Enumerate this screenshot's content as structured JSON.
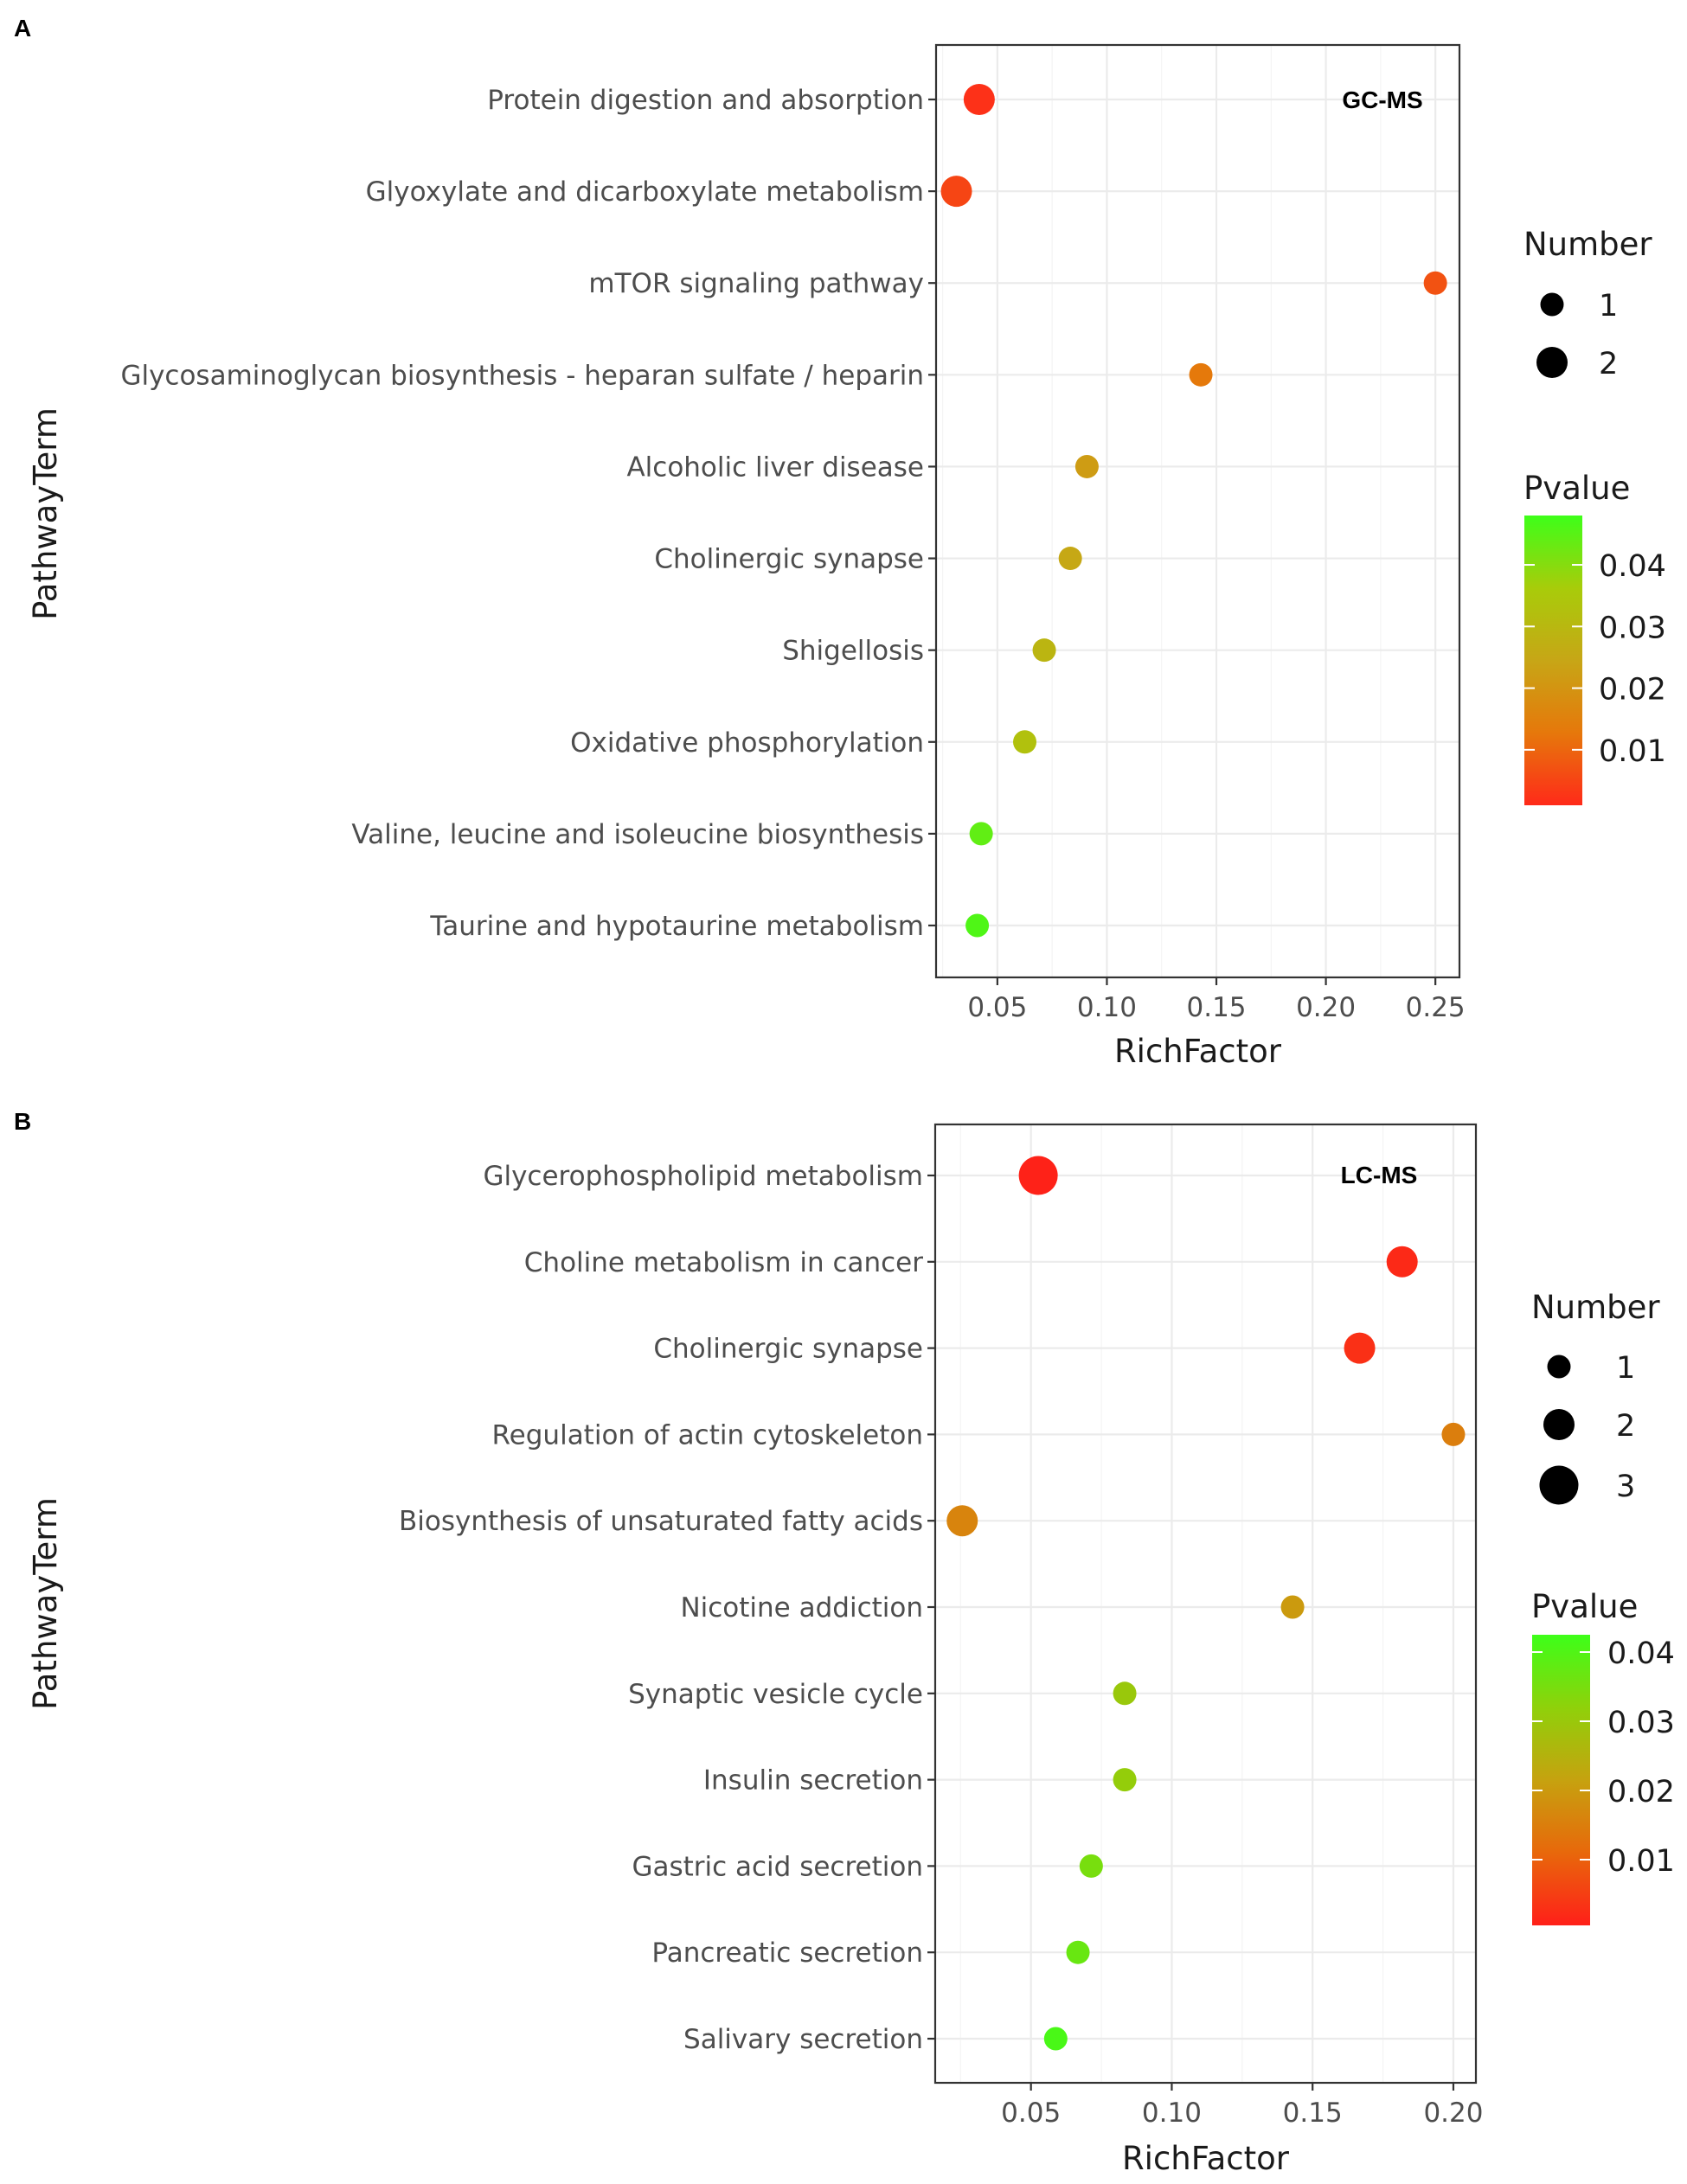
{
  "chart_data": [
    {
      "type": "scatter",
      "panel_label": "A",
      "annotation": "GC-MS",
      "xlabel": "RichFactor",
      "ylabel": "PathwayTerm",
      "xlim": [
        0.022,
        0.261
      ],
      "xticks": [
        0.05,
        0.1,
        0.15,
        0.2,
        0.25
      ],
      "xtick_labels": [
        "0.05",
        "0.10",
        "0.15",
        "0.20",
        "0.25"
      ],
      "grid": true,
      "categories": [
        "Protein digestion and absorption",
        "Glyoxylate and dicarboxylate metabolism",
        "mTOR signaling pathway",
        "Glycosaminoglycan biosynthesis - heparan sulfate / heparin",
        "Alcoholic liver disease",
        "Cholinergic synapse",
        "Shigellosis",
        "Oxidative phosphorylation",
        "Valine, leucine and isoleucine biosynthesis",
        "Taurine and hypotaurine metabolism"
      ],
      "richfactor": [
        0.0417,
        0.0313,
        0.25,
        0.1429,
        0.0909,
        0.0833,
        0.0714,
        0.0625,
        0.0426,
        0.0408
      ],
      "number": [
        2,
        2,
        1,
        1,
        1,
        1,
        1,
        1,
        1,
        1
      ],
      "pvalue": [
        0.002,
        0.005,
        0.007,
        0.013,
        0.022,
        0.025,
        0.029,
        0.033,
        0.044,
        0.046
      ],
      "legend_number": {
        "title": "Number",
        "labels": [
          "1",
          "2"
        ]
      },
      "legend_pvalue": {
        "title": "Pvalue",
        "range": [
          0.001,
          0.048
        ],
        "ticks": [
          0.04,
          0.03,
          0.02,
          0.01
        ],
        "tick_labels": [
          "0.04",
          "0.03",
          "0.02",
          "0.01"
        ],
        "colors": [
          "#ff2a19",
          "#e6780b",
          "#c7a616",
          "#a8cc0a",
          "#3dff19"
        ]
      }
    },
    {
      "type": "scatter",
      "panel_label": "B",
      "annotation": "LC-MS",
      "xlabel": "RichFactor",
      "ylabel": "PathwayTerm",
      "xlim": [
        0.016,
        0.208
      ],
      "xticks": [
        0.05,
        0.1,
        0.15,
        0.2
      ],
      "xtick_labels": [
        "0.05",
        "0.10",
        "0.15",
        "0.20"
      ],
      "grid": true,
      "categories": [
        "Glycerophospholipid metabolism",
        "Choline metabolism in cancer",
        "Cholinergic synapse",
        "Regulation of actin cytoskeleton",
        "Biosynthesis of unsaturated fatty acids",
        "Nicotine addiction",
        "Synaptic vesicle cycle",
        "Insulin secretion",
        "Gastric acid secretion",
        "Pancreatic secretion",
        "Salivary secretion"
      ],
      "richfactor": [
        0.0526,
        0.1818,
        0.1667,
        0.2,
        0.0256,
        0.1429,
        0.0833,
        0.0833,
        0.0714,
        0.0667,
        0.0588
      ],
      "number": [
        3,
        2,
        2,
        1,
        2,
        1,
        1,
        1,
        1,
        1,
        1
      ],
      "pvalue": [
        0.001,
        0.002,
        0.003,
        0.015,
        0.016,
        0.02,
        0.03,
        0.031,
        0.035,
        0.037,
        0.041
      ],
      "legend_number": {
        "title": "Number",
        "labels": [
          "1",
          "2",
          "3"
        ]
      },
      "legend_pvalue": {
        "title": "Pvalue",
        "range": [
          0.0005,
          0.0425
        ],
        "ticks": [
          0.04,
          0.03,
          0.02,
          0.01
        ],
        "tick_labels": [
          "0.04",
          "0.03",
          "0.02",
          "0.01"
        ],
        "colors": [
          "#ff1f19",
          "#e8680b",
          "#c6a20f",
          "#8fd10a",
          "#3dff19"
        ]
      }
    }
  ]
}
